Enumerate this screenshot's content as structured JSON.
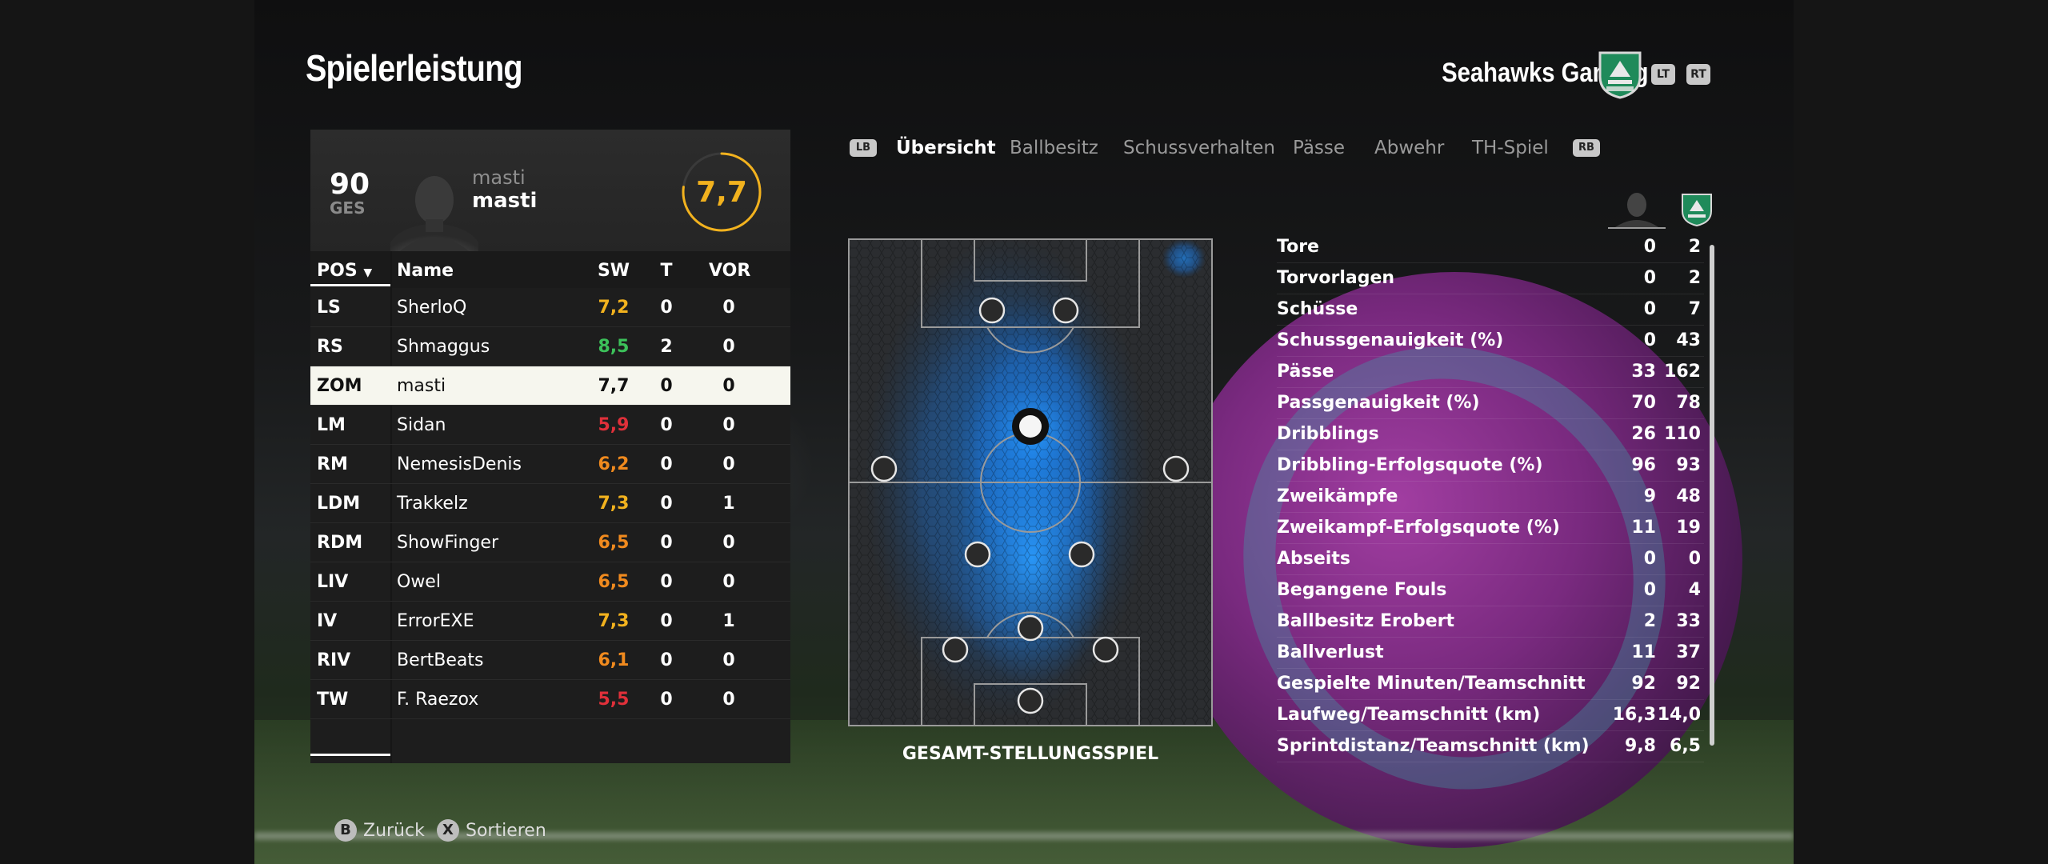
{
  "header": {
    "title": "Spielerleistung",
    "team_name": "Seahawks Gaming",
    "lt": "LT",
    "rt": "RT"
  },
  "player_card": {
    "overall": "90",
    "overall_label": "GES",
    "name_small": "masti",
    "name": "masti",
    "rating": "7,7"
  },
  "table": {
    "columns": {
      "pos": "POS",
      "name": "Name",
      "sw": "SW",
      "t": "T",
      "vor": "VOR"
    },
    "rows": [
      {
        "pos": "LS",
        "name": "SherloQ",
        "sw": "7,2",
        "t": "0",
        "vor": "0",
        "color": "#f2b21e"
      },
      {
        "pos": "RS",
        "name": "Shmaggus",
        "sw": "8,5",
        "t": "2",
        "vor": "0",
        "color": "#3cc15a"
      },
      {
        "pos": "ZOM",
        "name": "masti",
        "sw": "7,7",
        "t": "0",
        "vor": "0",
        "color": "#111111"
      },
      {
        "pos": "LM",
        "name": "Sidan",
        "sw": "5,9",
        "t": "0",
        "vor": "0",
        "color": "#e0303a"
      },
      {
        "pos": "RM",
        "name": "NemesisDenis",
        "sw": "6,2",
        "t": "0",
        "vor": "0",
        "color": "#f08a1e"
      },
      {
        "pos": "LDM",
        "name": "Trakkelz",
        "sw": "7,3",
        "t": "0",
        "vor": "1",
        "color": "#f2b21e"
      },
      {
        "pos": "RDM",
        "name": "ShowFinger",
        "sw": "6,5",
        "t": "0",
        "vor": "0",
        "color": "#f08a1e"
      },
      {
        "pos": "LIV",
        "name": "Owel",
        "sw": "6,5",
        "t": "0",
        "vor": "0",
        "color": "#f08a1e"
      },
      {
        "pos": "IV",
        "name": "ErrorEXE",
        "sw": "7,3",
        "t": "0",
        "vor": "1",
        "color": "#f2b21e"
      },
      {
        "pos": "RIV",
        "name": "BertBeats",
        "sw": "6,1",
        "t": "0",
        "vor": "0",
        "color": "#f08a1e"
      },
      {
        "pos": "TW",
        "name": "F. Raezox",
        "sw": "5,5",
        "t": "0",
        "vor": "0",
        "color": "#e0303a"
      }
    ]
  },
  "tabs": {
    "lb": "LB",
    "rb": "RB",
    "items": [
      "Übersicht",
      "Ballbesitz",
      "Schussverhalten",
      "Pässe",
      "Abwehr",
      "TH-Spiel"
    ]
  },
  "pitch": {
    "caption": "GESAMT-STELLUNGSSPIEL"
  },
  "stats": [
    {
      "label": "Tore",
      "player": "0",
      "team": "2"
    },
    {
      "label": "Torvorlagen",
      "player": "0",
      "team": "2"
    },
    {
      "label": "Schüsse",
      "player": "0",
      "team": "7"
    },
    {
      "label": "Schussgenauigkeit (%)",
      "player": "0",
      "team": "43"
    },
    {
      "label": "Pässe",
      "player": "33",
      "team": "162"
    },
    {
      "label": "Passgenauigkeit (%)",
      "player": "70",
      "team": "78"
    },
    {
      "label": "Dribblings",
      "player": "26",
      "team": "110"
    },
    {
      "label": "Dribbling-Erfolgsquote (%)",
      "player": "96",
      "team": "93"
    },
    {
      "label": "Zweikämpfe",
      "player": "9",
      "team": "48"
    },
    {
      "label": "Zweikampf-Erfolgsquote (%)",
      "player": "11",
      "team": "19"
    },
    {
      "label": "Abseits",
      "player": "0",
      "team": "0"
    },
    {
      "label": "Begangene Fouls",
      "player": "0",
      "team": "4"
    },
    {
      "label": "Ballbesitz Erobert",
      "player": "2",
      "team": "33"
    },
    {
      "label": "Ballverlust",
      "player": "11",
      "team": "37"
    },
    {
      "label": "Gespielte Minuten/Teamschnitt",
      "player": "92",
      "team": "92"
    },
    {
      "label": "Laufweg/Teamschnitt (km)",
      "player": "16,3",
      "team": "14,0"
    },
    {
      "label": "Sprintdistanz/Teamschnitt (km)",
      "player": "9,8",
      "team": "6,5"
    }
  ],
  "footer": {
    "back_key": "B",
    "back_label": "Zurück",
    "sort_key": "X",
    "sort_label": "Sortieren"
  },
  "colors": {
    "rating": "#f2b21e",
    "heat": "#1e8fff",
    "crest": "#1f8a5a"
  }
}
